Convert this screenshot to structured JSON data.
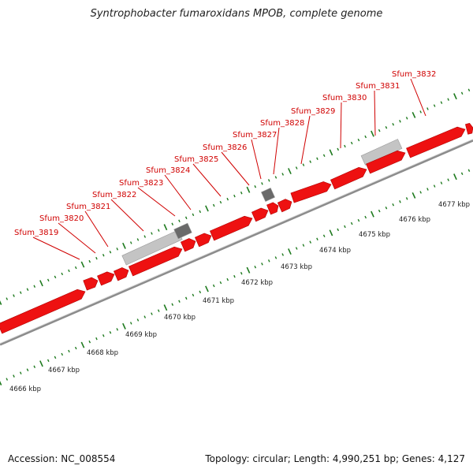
{
  "title": "Syntrophobacter fumaroxidans MPOB, complete genome",
  "footer": {
    "accession": "Accession: NC_008554",
    "summary": "Topology: circular; Length: 4,990,251 bp; Genes: 4,127"
  },
  "colors": {
    "gene": "#ee1111",
    "gene_line": "#d00000",
    "ticks": "#1e7a1e",
    "backbone": "#8c8c8c",
    "feature_light": "#c4c4c4",
    "feature_dark": "#6a6a6a"
  },
  "gene_labels": [
    "Sfum_3819",
    "Sfum_3820",
    "Sfum_3821",
    "Sfum_3822",
    "Sfum_3823",
    "Sfum_3824",
    "Sfum_3825",
    "Sfum_3826",
    "Sfum_3827",
    "Sfum_3828",
    "Sfum_3829",
    "Sfum_3830",
    "Sfum_3831",
    "Sfum_3832"
  ],
  "kbp_labels": [
    "4666 kbp",
    "4667 kbp",
    "4668 kbp",
    "4669 kbp",
    "4670 kbp",
    "4671 kbp",
    "4672 kbp",
    "4673 kbp",
    "4674 kbp",
    "4675 kbp",
    "4676 kbp",
    "4677 kbp"
  ]
}
